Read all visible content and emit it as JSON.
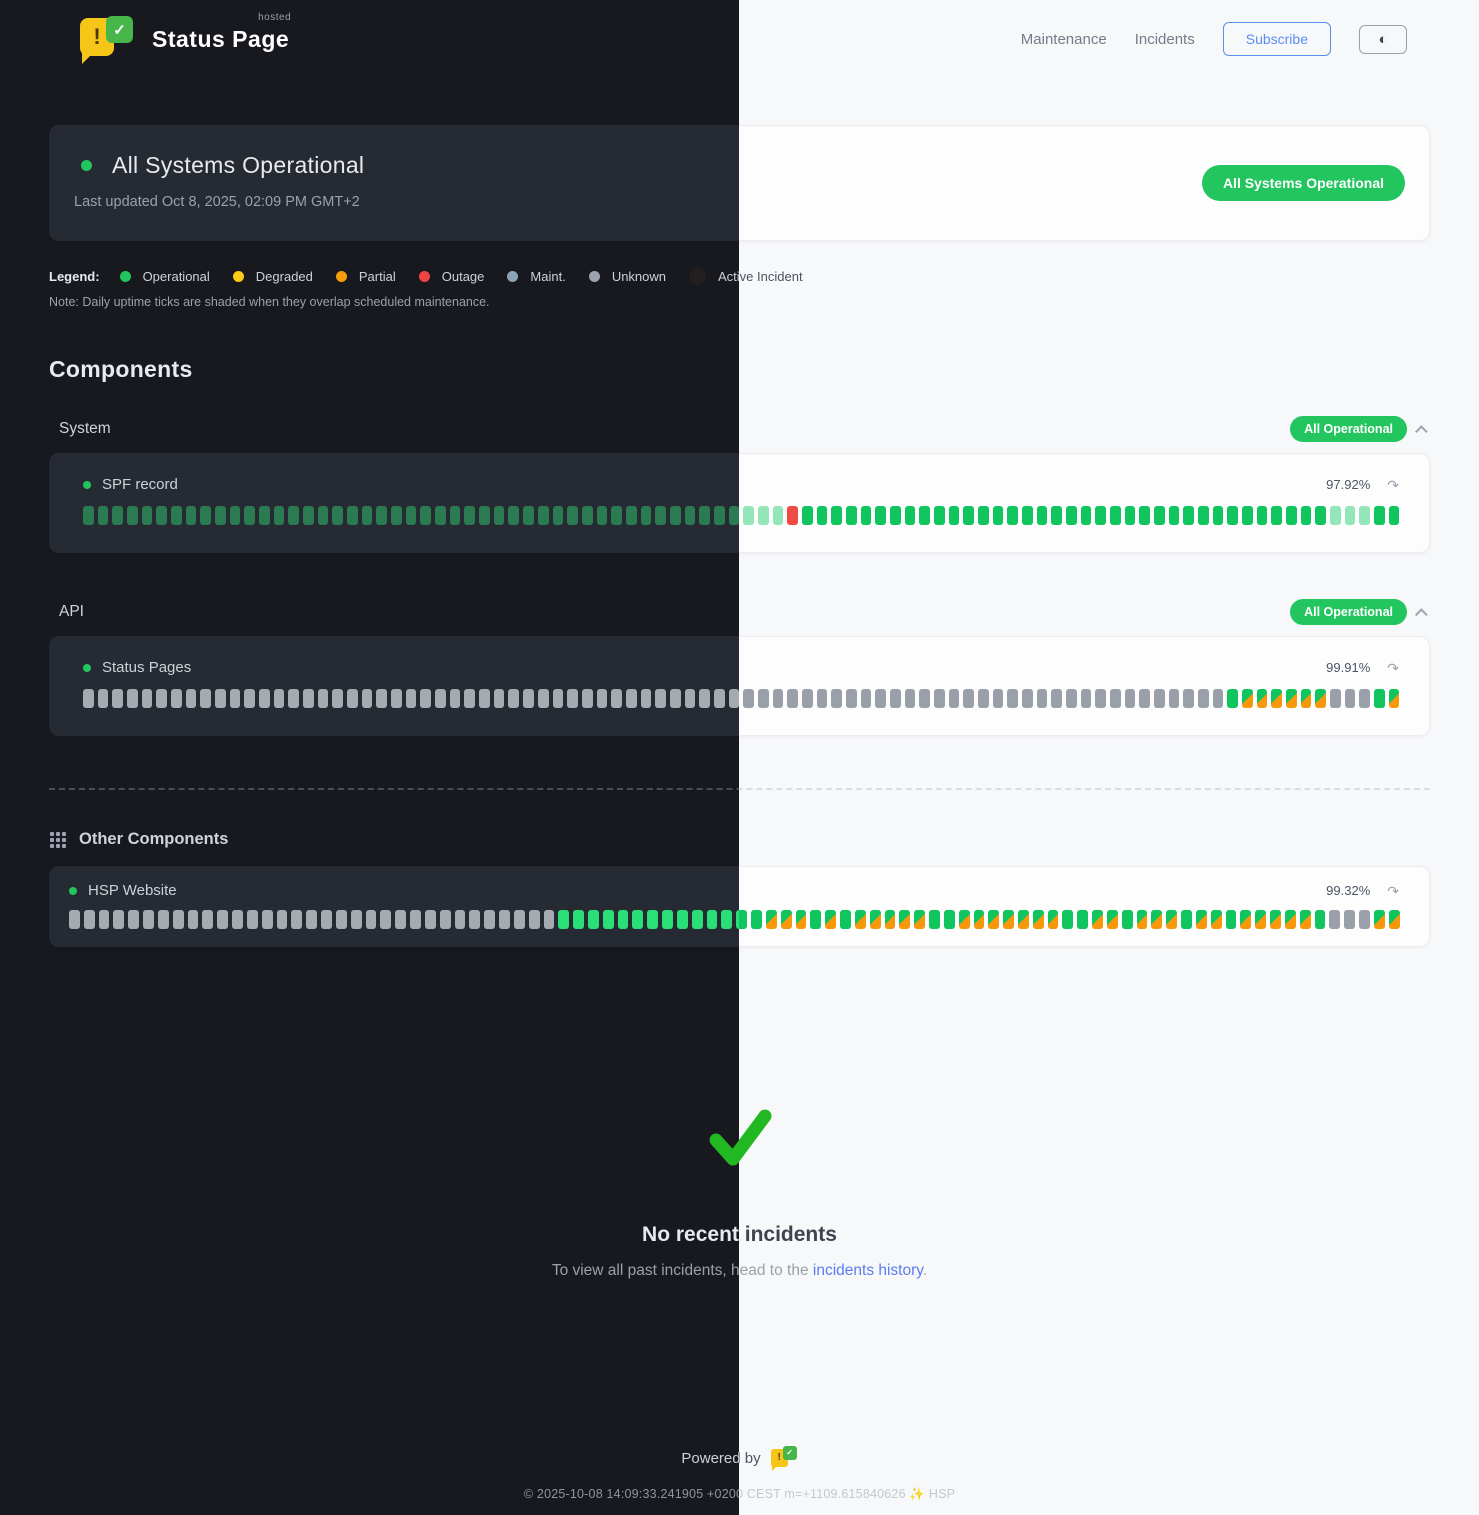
{
  "brand": {
    "name": "Status Page",
    "hosted_tag": "hosted",
    "bubble_glyph": "!",
    "check_glyph": "✓"
  },
  "nav": {
    "maintenance": "Maintenance",
    "incidents": "Incidents",
    "subscribe": "Subscribe",
    "theme_toggle_icon": "◐"
  },
  "banner": {
    "title": "All Systems Operational",
    "last_updated": "Last updated Oct 8, 2025, 02:09 PM GMT+2",
    "badge": "All Systems Operational",
    "badge_color": "#22c55e"
  },
  "legend": {
    "label": "Legend:",
    "items": [
      {
        "label": "Operational",
        "color": "#22c55e"
      },
      {
        "label": "Degraded",
        "color": "#facc15"
      },
      {
        "label": "Partial",
        "color": "#f59e0b"
      },
      {
        "label": "Outage",
        "color": "#ef4444"
      },
      {
        "label": "Maint.",
        "color": "#8ba3b8"
      },
      {
        "label": "Unknown",
        "color": "#9ca3af"
      },
      {
        "label": "Active Incident",
        "color": "#221f1e"
      }
    ],
    "note": "Note: Daily uptime ticks are shaded when they overlap scheduled maintenance."
  },
  "components": {
    "heading": "Components",
    "groups": [
      {
        "name": "System",
        "badge": "All Operational",
        "items": [
          {
            "name": "SPF record",
            "uptime": "97.92%",
            "refresh_icon": "↷",
            "ticks": "ooooooooooooooooooooooooooooooooooooooooooooosssxoooooooooooooooooooooooooooooooooooosssoo"
          }
        ]
      },
      {
        "name": "API",
        "badge": "All Operational",
        "items": [
          {
            "name": "Status Pages",
            "uptime": "99.91%",
            "refresh_icon": "↷",
            "ticks": "uuuuuuuuuuuuuuuuuuuuuuuuuuuuuuuuuuuuuuuuuuuuuuuuuuuuuuuuuuuuuuuuuuuuuuuuuuuuuuommmmmmuuuom"
          }
        ]
      },
      {
        "name": "Other Components",
        "badge": "",
        "items": [
          {
            "name": "HSP Website",
            "uptime": "99.32%",
            "refresh_icon": "↷",
            "ticks": "uuuuuuuuuuuuuuuuuuuuuuuuuuuuuuuuuOOOOOOOOOOOOOOmmmOmOmmmmmOOmmmmmmmOOmmOmmmOmmOmmmmmOuuumm"
          }
        ]
      }
    ]
  },
  "no_incidents": {
    "title": "No recent incidents",
    "subtext_prefix": "To view all past incidents, head to the ",
    "link": "incidents history",
    "subtext_suffix": ".",
    "check_color": "#22b822"
  },
  "footer": {
    "powered_by": "Powered by",
    "copyright": "© 2025-10-08 14:09:33.241905 +0200 CEST m=+1109.615840626 ✨ HSP"
  }
}
